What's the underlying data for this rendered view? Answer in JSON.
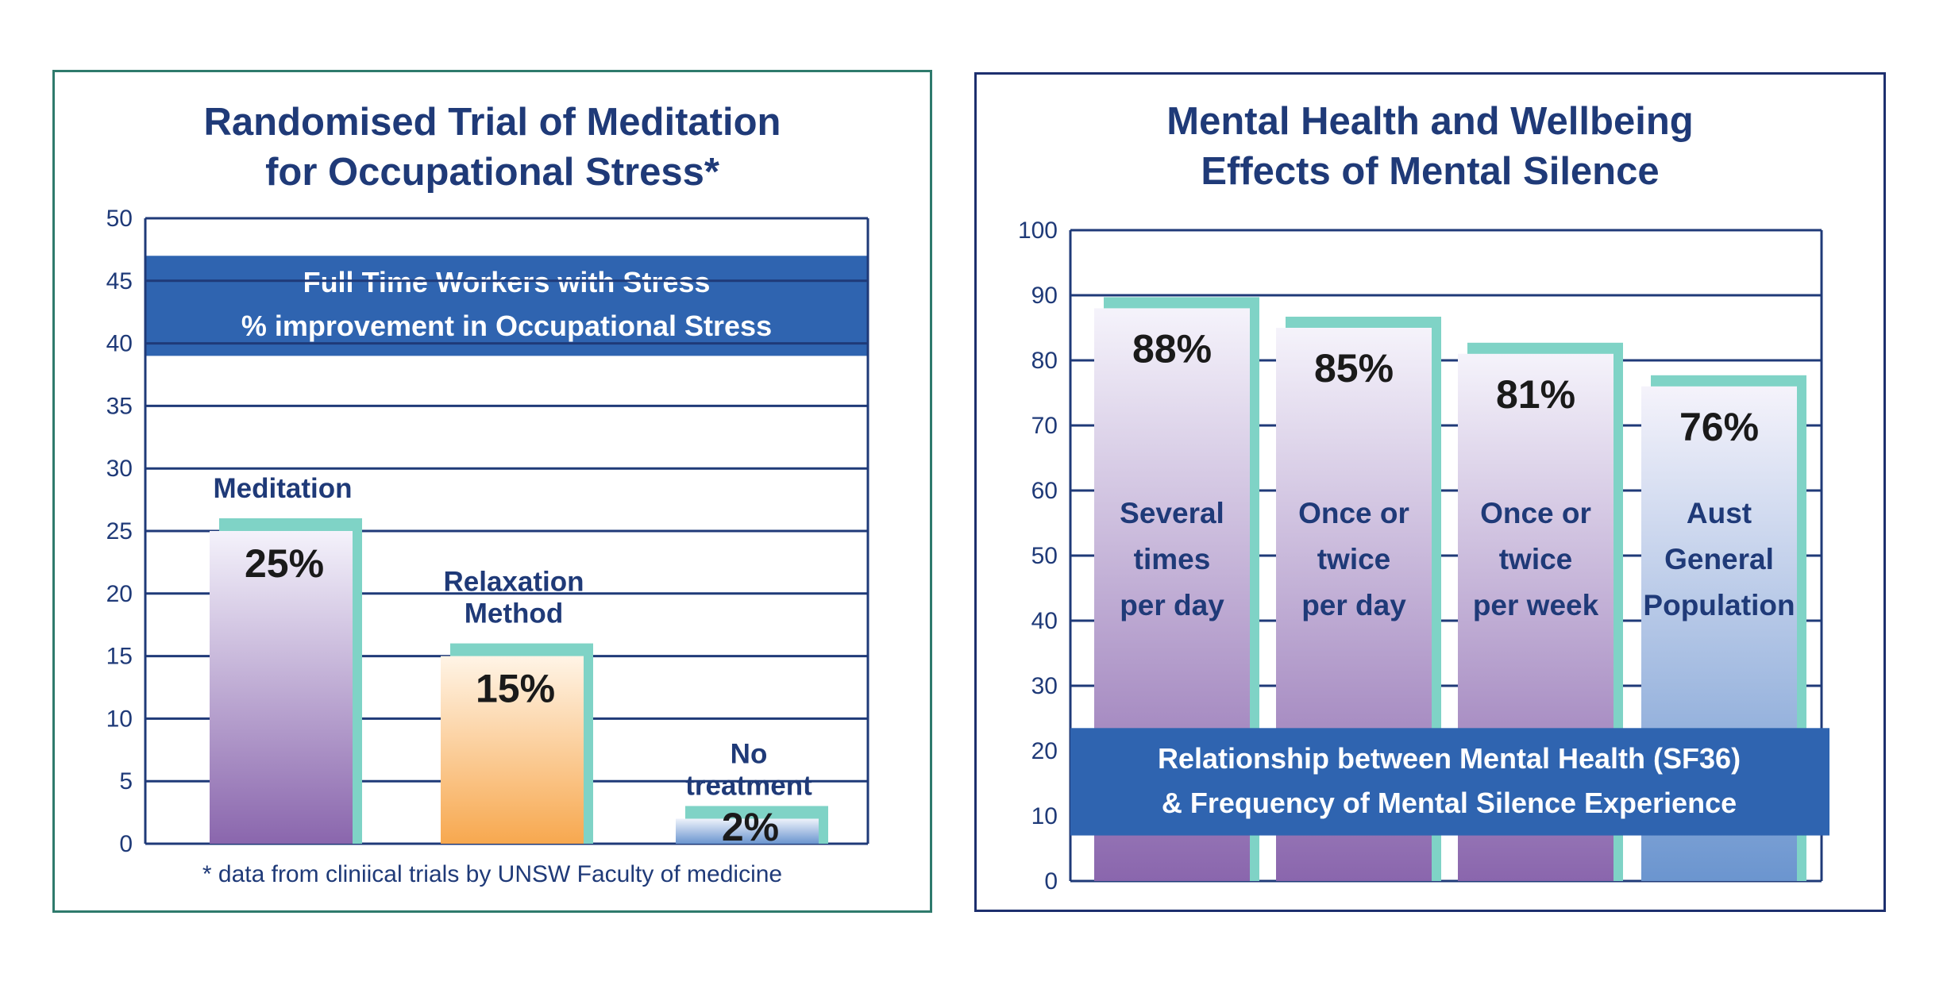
{
  "chart_data": [
    {
      "type": "bar",
      "title": [
        "Randomised Trial of Meditation",
        "for Occupational Stress*"
      ],
      "banner": [
        "Full Time Workers with Stress",
        "% improvement in Occupational Stress"
      ],
      "categories": [
        [
          "Meditation"
        ],
        [
          "Relaxation",
          "Method"
        ],
        [
          "No",
          "treatment"
        ]
      ],
      "values": [
        25,
        15,
        2
      ],
      "data_labels": [
        "25%",
        "15%",
        "2%"
      ],
      "yticks": [
        "0",
        "5",
        "10",
        "15",
        "20",
        "25",
        "30",
        "35",
        "40",
        "45",
        "50"
      ],
      "ylim": [
        0,
        50
      ],
      "grid": true,
      "footnote": "* data from cliniical trials by UNSW Faculty of medicine",
      "colors": {
        "axis": "#1f3a78",
        "banner": "#2f64b0",
        "accent": "#7fd3c6",
        "meditation": "#8a66ad",
        "relaxation": "#f7a84f",
        "none": "#6b95cf"
      }
    },
    {
      "type": "bar",
      "title": [
        "Mental Health and Wellbeing",
        "Effects of Mental Silence"
      ],
      "banner": [
        "Relationship between Mental Health (SF36)",
        "& Frequency of Mental Silence Experience"
      ],
      "categories": [
        [
          "Several",
          "times",
          "per day"
        ],
        [
          "Once or",
          "twice",
          "per day"
        ],
        [
          "Once or",
          "twice",
          "per week"
        ],
        [
          "Aust",
          "General",
          "Population"
        ]
      ],
      "values": [
        88,
        85,
        81,
        76
      ],
      "data_labels": [
        "88%",
        "85%",
        "81%",
        "76%"
      ],
      "yticks": [
        "0",
        "10",
        "20",
        "30",
        "40",
        "50",
        "60",
        "70",
        "80",
        "90",
        "100"
      ],
      "ylim": [
        0,
        100
      ],
      "grid": true,
      "colors": {
        "axis": "#1f3a78",
        "banner": "#2f64b0",
        "accent": "#7fd3c6",
        "purple": "#8a66ad",
        "blue": "#6b95cf"
      }
    }
  ]
}
